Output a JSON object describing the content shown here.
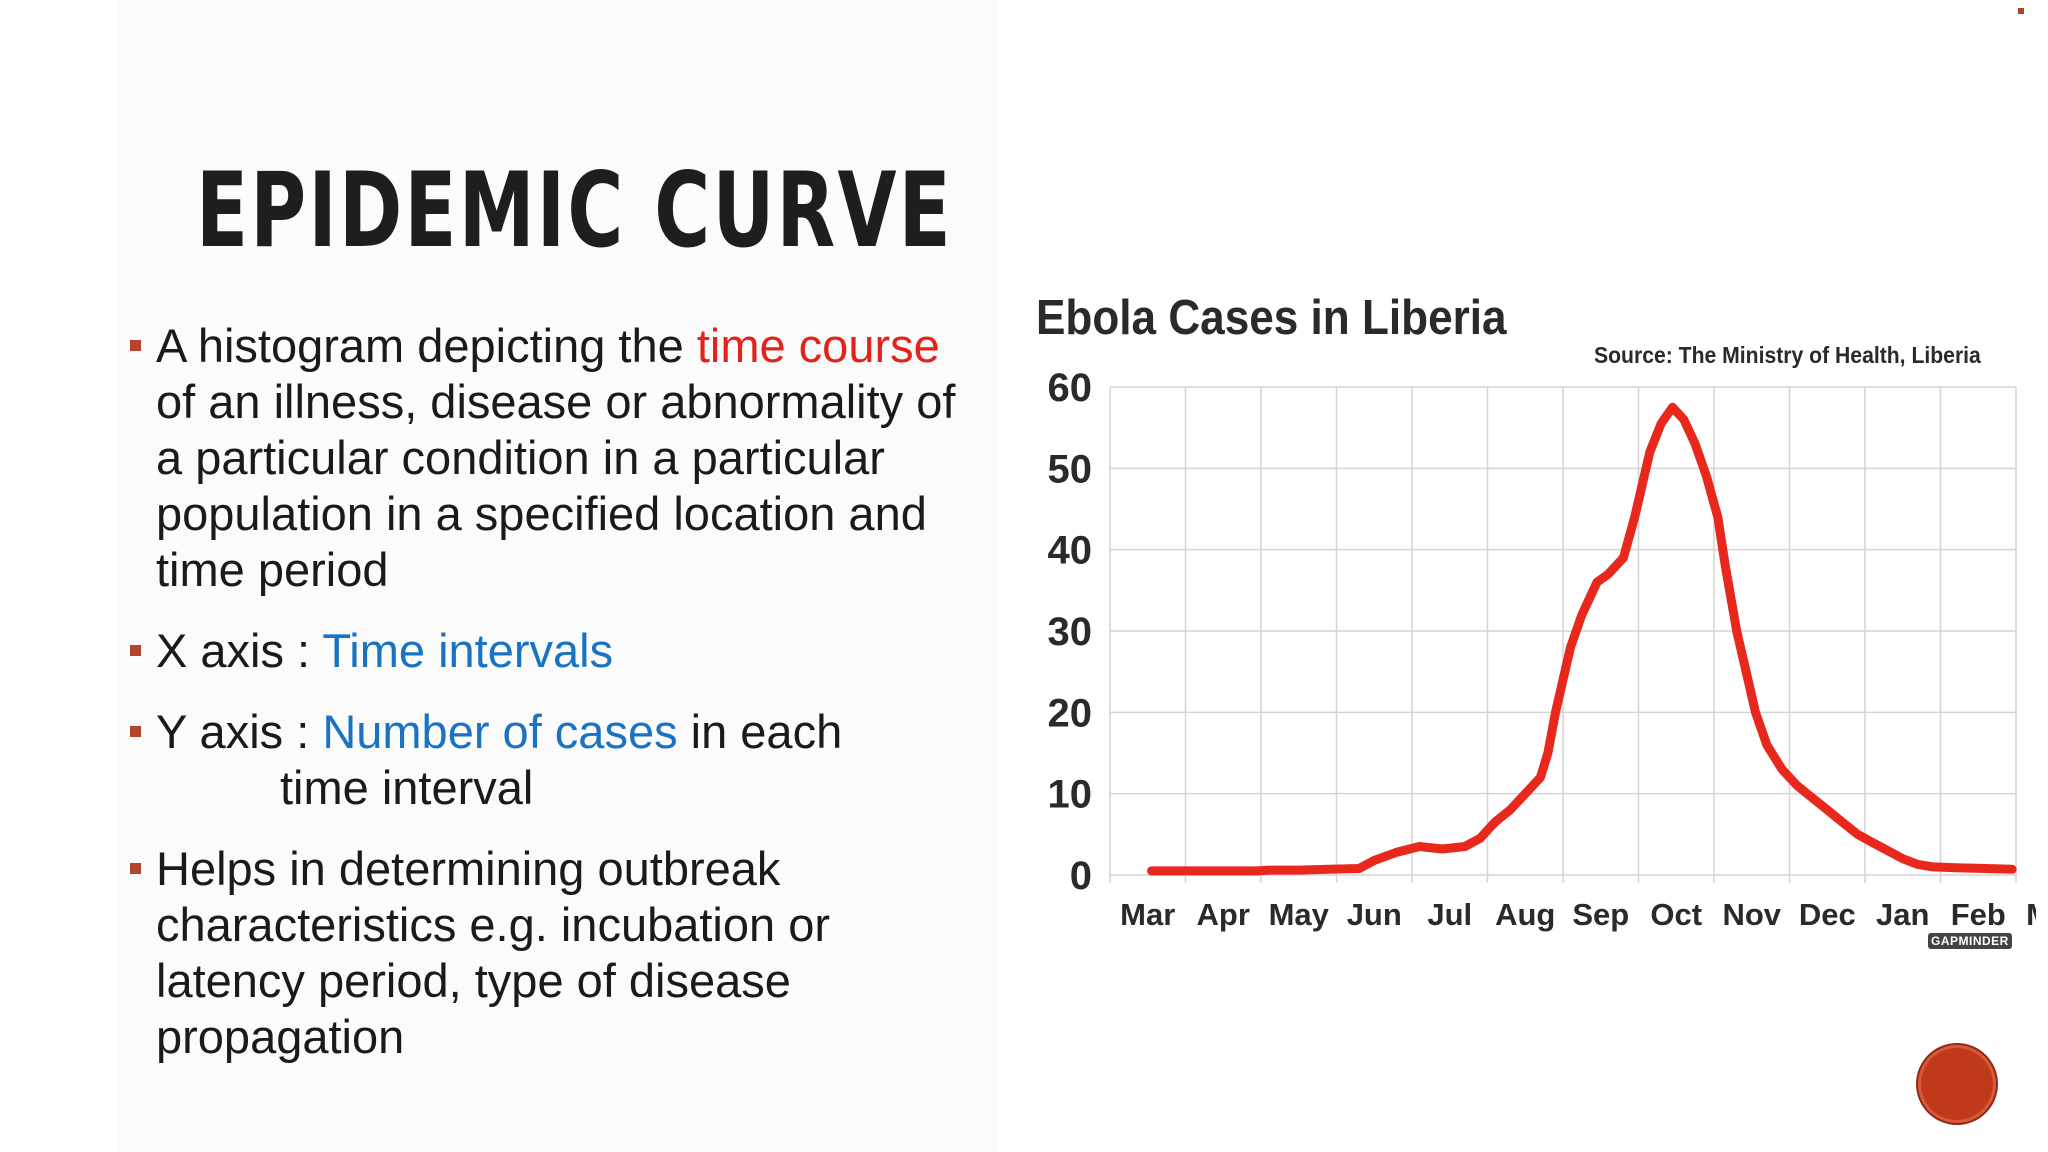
{
  "slide": {
    "title": "EPIDEMIC CURVE",
    "bullets": [
      {
        "parts": [
          {
            "text": "A histogram depicting the ",
            "style": "normal"
          },
          {
            "text": "time course",
            "style": "red"
          },
          {
            "text": " of an illness, disease or abnormality of a particular condition in a particular population in a specified location and time period",
            "style": "normal"
          }
        ]
      },
      {
        "parts": [
          {
            "text": "X axis : ",
            "style": "normal"
          },
          {
            "text": "Time intervals",
            "style": "blue"
          }
        ]
      },
      {
        "parts": [
          {
            "text": "Y axis : ",
            "style": "normal"
          },
          {
            "text": "Number of cases",
            "style": "blue"
          },
          {
            "text": " in each",
            "style": "normal"
          }
        ],
        "continuation": "time interval"
      },
      {
        "parts": [
          {
            "text": "Helps in determining outbreak characteristics e.g. incubation or latency period, type of disease propagation",
            "style": "normal"
          }
        ]
      }
    ],
    "colors": {
      "highlight_red": "#e2231a",
      "highlight_blue": "#1a73c2",
      "bullet_marker": "#b5442c",
      "badge": "#c0391b"
    }
  },
  "chart_data": {
    "type": "line",
    "title": "Ebola Cases in Liberia",
    "source": "Source: The Ministry of Health, Liberia",
    "watermark": "GAPMINDER",
    "categories": [
      "Mar",
      "Apr",
      "May",
      "Jun",
      "Jul",
      "Aug",
      "Sep",
      "Oct",
      "Nov",
      "Dec",
      "Jan",
      "Feb",
      "Mar"
    ],
    "yticks": [
      0,
      10,
      20,
      30,
      40,
      50,
      60
    ],
    "ylim": [
      0,
      60
    ],
    "xlabel": "",
    "ylabel": "",
    "grid": true,
    "line_color": "#e8281c",
    "series": [
      {
        "values": [
          [
            0.55,
            0.5
          ],
          [
            1.0,
            0.5
          ],
          [
            1.5,
            0.5
          ],
          [
            1.95,
            0.5
          ],
          [
            2.1,
            0.6
          ],
          [
            2.5,
            0.6
          ],
          [
            2.9,
            0.7
          ],
          [
            3.3,
            0.8
          ],
          [
            3.5,
            1.8
          ],
          [
            3.8,
            2.8
          ],
          [
            4.1,
            3.5
          ],
          [
            4.4,
            3.2
          ],
          [
            4.7,
            3.5
          ],
          [
            4.9,
            4.5
          ],
          [
            5.1,
            6.5
          ],
          [
            5.3,
            8.0
          ],
          [
            5.5,
            10.0
          ],
          [
            5.7,
            12.0
          ],
          [
            5.8,
            15.0
          ],
          [
            5.9,
            20.0
          ],
          [
            6.0,
            24.0
          ],
          [
            6.1,
            28.0
          ],
          [
            6.25,
            32.0
          ],
          [
            6.45,
            36.0
          ],
          [
            6.6,
            37.0
          ],
          [
            6.8,
            39.0
          ],
          [
            6.95,
            44.0
          ],
          [
            7.15,
            52.0
          ],
          [
            7.3,
            55.5
          ],
          [
            7.45,
            57.5
          ],
          [
            7.6,
            56.0
          ],
          [
            7.75,
            53.0
          ],
          [
            7.9,
            49.0
          ],
          [
            8.05,
            44.0
          ],
          [
            8.15,
            38.0
          ],
          [
            8.3,
            30.0
          ],
          [
            8.45,
            24.0
          ],
          [
            8.55,
            20.0
          ],
          [
            8.7,
            16.0
          ],
          [
            8.9,
            13.0
          ],
          [
            9.1,
            11.0
          ],
          [
            9.3,
            9.5
          ],
          [
            9.5,
            8.0
          ],
          [
            9.7,
            6.5
          ],
          [
            9.9,
            5.0
          ],
          [
            10.1,
            4.0
          ],
          [
            10.3,
            3.0
          ],
          [
            10.5,
            2.0
          ],
          [
            10.7,
            1.3
          ],
          [
            10.9,
            1.0
          ],
          [
            11.2,
            0.9
          ],
          [
            11.6,
            0.8
          ],
          [
            11.95,
            0.7
          ]
        ]
      }
    ]
  }
}
